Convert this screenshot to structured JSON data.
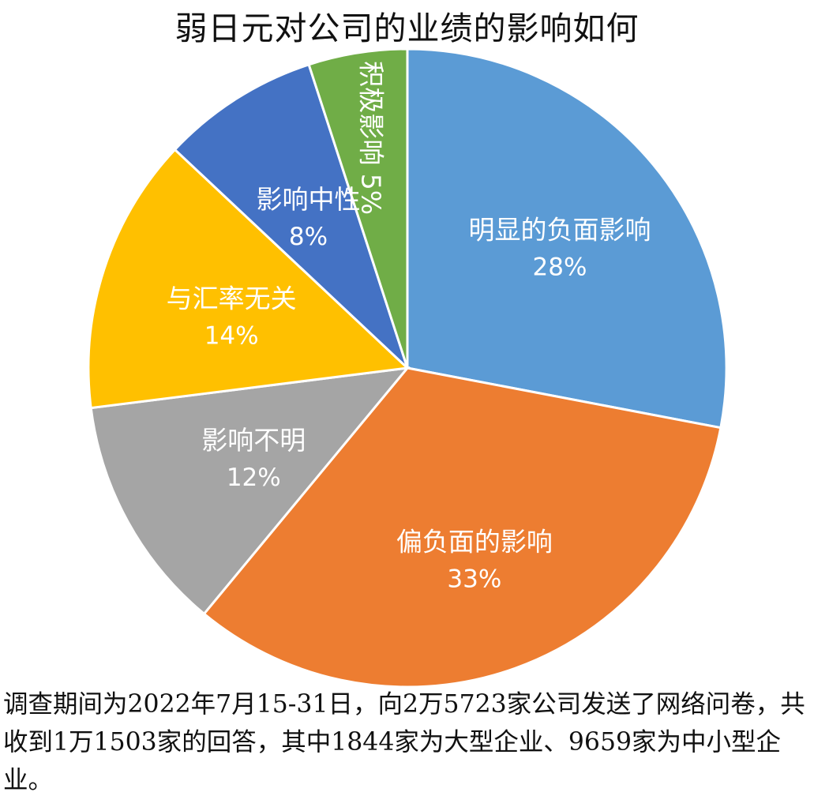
{
  "chart_data": {
    "type": "pie",
    "title": "弱日元对公司的业绩的影响如何",
    "slices": [
      {
        "label": "明显的负面影响",
        "value": 28,
        "value_label": "28%",
        "color": "#5b9bd5"
      },
      {
        "label": "偏负面的影响",
        "value": 33,
        "value_label": "33%",
        "color": "#ed7d31"
      },
      {
        "label": "影响不明",
        "value": 12,
        "value_label": "12%",
        "color": "#a5a5a5"
      },
      {
        "label": "与汇率无关",
        "value": 14,
        "value_label": "14%",
        "color": "#ffc000"
      },
      {
        "label": "影响中性",
        "value": 8,
        "value_label": "8%",
        "color": "#4472c4"
      },
      {
        "label": "积极影响",
        "value": 5,
        "value_label": "5%",
        "color": "#70ad47",
        "vertical": true
      }
    ]
  },
  "footnote": "调查期间为2022年7月15-31日，向2万5723家公司发送了网络问卷，共收到1万1503家的回答，其中1844家为大型企业、9659家为中小型企业。"
}
